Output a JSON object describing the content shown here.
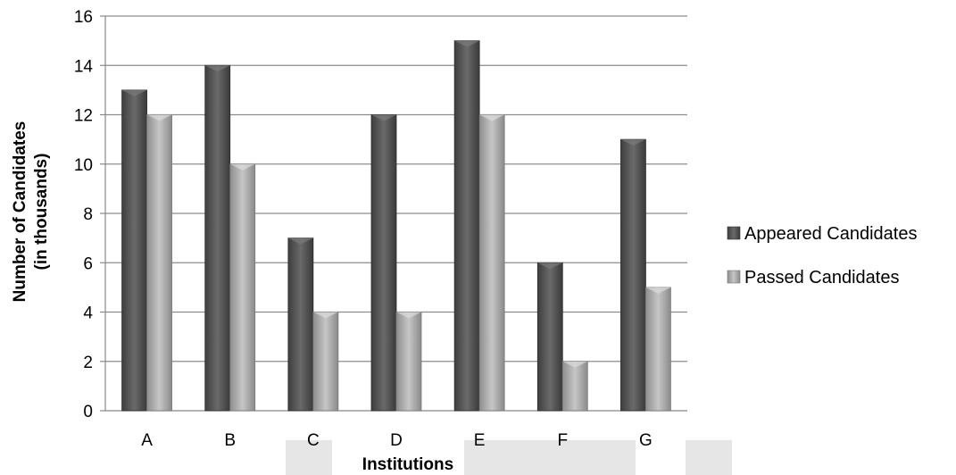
{
  "chart_data": {
    "type": "bar",
    "title": "",
    "categories": [
      "A",
      "B",
      "C",
      "D",
      "E",
      "F",
      "G"
    ],
    "series": [
      {
        "name": "Appeared Candidates",
        "values": [
          13,
          14,
          7,
          12,
          15,
          6,
          11
        ],
        "color": "#555555"
      },
      {
        "name": "Passed Candidates",
        "values": [
          12,
          10,
          4,
          4,
          12,
          2,
          5
        ],
        "color": "#a6a6a6"
      }
    ],
    "xlabel": "Institutions",
    "ylabel_lines": [
      "Number of Candidates",
      "(in thousands)"
    ],
    "ylim": [
      0,
      16
    ],
    "yticks": [
      "0",
      "2",
      "4",
      "6",
      "8",
      "10",
      "12",
      "14",
      "16"
    ],
    "grid": true,
    "legend_position": "right"
  }
}
